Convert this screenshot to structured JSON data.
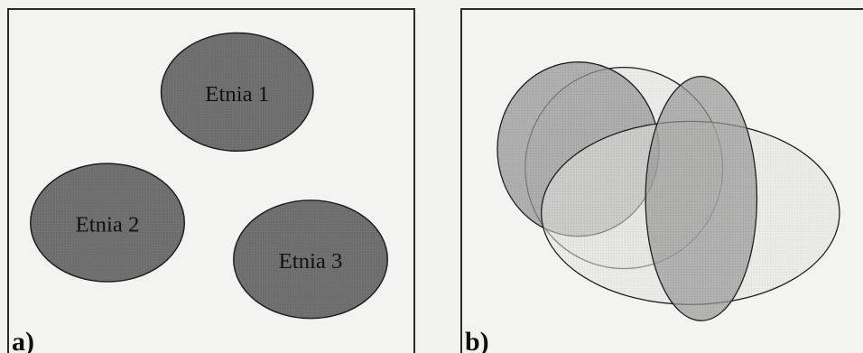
{
  "panels": {
    "a": {
      "label": "a)",
      "groups": [
        "Etnia 1",
        "Etnia 2",
        "Etnia 3"
      ]
    },
    "b": {
      "label": "b)"
    }
  },
  "colors": {
    "separate_fill": "#6f6f6f",
    "overlap_dark": "#8d8d8d",
    "overlap_mid": "#a9a9a9",
    "overlap_light": "#d8d8d8",
    "outline": "#1f1f1f",
    "background": "#f3f3f1"
  }
}
